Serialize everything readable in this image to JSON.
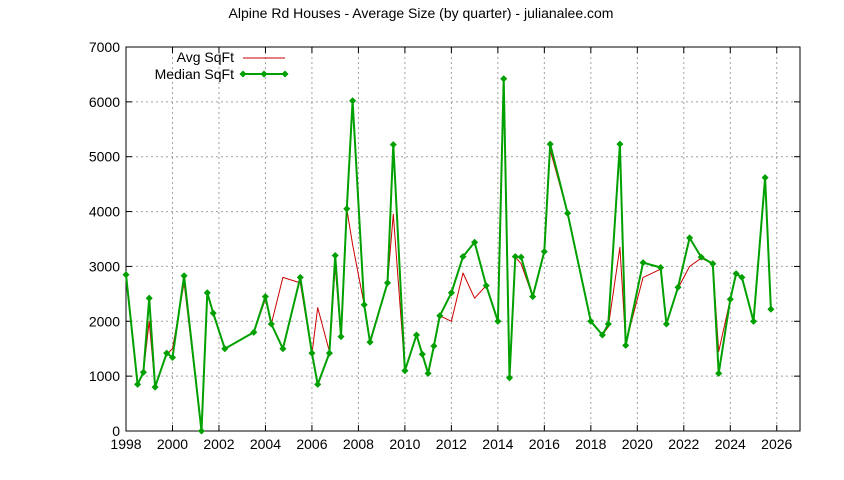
{
  "chart_data": {
    "type": "line",
    "title": "Alpine Rd Houses - Average Size (by quarter) - julianalee.com",
    "xlabel": "",
    "ylabel": "",
    "xlim": [
      1998,
      2027
    ],
    "ylim": [
      0,
      7000
    ],
    "x_ticks": [
      1998,
      2000,
      2002,
      2004,
      2006,
      2008,
      2010,
      2012,
      2014,
      2016,
      2018,
      2020,
      2022,
      2024,
      2026
    ],
    "y_ticks": [
      0,
      1000,
      2000,
      3000,
      4000,
      5000,
      6000,
      7000
    ],
    "grid": true,
    "legend_position": "top-left",
    "x": [
      1998.0,
      1998.5,
      1998.75,
      1999.0,
      1999.25,
      1999.75,
      2000.0,
      2000.5,
      2001.25,
      2001.5,
      2001.75,
      2002.25,
      2003.5,
      2004.0,
      2004.25,
      2004.75,
      2005.5,
      2006.0,
      2006.25,
      2006.75,
      2007.0,
      2007.25,
      2007.5,
      2007.75,
      2008.25,
      2008.5,
      2009.25,
      2009.5,
      2010.0,
      2010.5,
      2010.75,
      2011.0,
      2011.25,
      2011.5,
      2012.0,
      2012.5,
      2013.0,
      2013.5,
      2014.0,
      2014.25,
      2014.5,
      2014.75,
      2015.0,
      2015.5,
      2016.0,
      2016.25,
      2017.0,
      2018.0,
      2018.5,
      2018.75,
      2019.25,
      2019.5,
      2020.25,
      2021.0,
      2021.25,
      2021.75,
      2022.25,
      2022.75,
      2023.25,
      2023.5,
      2024.0,
      2024.25,
      2024.5,
      2025.0,
      2025.5,
      2025.75
    ],
    "series": [
      {
        "name": "Avg SqFt",
        "color": "#cc0000",
        "style": "line",
        "values": [
          2850,
          850,
          1070,
          2000,
          800,
          1400,
          1500,
          2700,
          0,
          2500,
          2150,
          1500,
          1800,
          2400,
          1950,
          2800,
          2700,
          1400,
          2250,
          1450,
          3000,
          1700,
          4050,
          3400,
          2300,
          1650,
          2700,
          3950,
          1100,
          1750,
          1400,
          1050,
          1550,
          2100,
          2000,
          2880,
          2420,
          2650,
          2000,
          6400,
          970,
          3170,
          3050,
          2450,
          3300,
          5120,
          3970,
          2000,
          1750,
          1900,
          3350,
          1600,
          2800,
          2950,
          1950,
          2600,
          3000,
          3150,
          3050,
          1450,
          2400,
          2850,
          2800,
          2000,
          4620,
          2200
        ]
      },
      {
        "name": "Median SqFt",
        "color": "#00a000",
        "style": "linespoints",
        "values": [
          2850,
          850,
          1070,
          2420,
          800,
          1420,
          1340,
          2830,
          0,
          2520,
          2150,
          1500,
          1800,
          2450,
          1950,
          1500,
          2800,
          1420,
          850,
          1420,
          3200,
          1720,
          4050,
          6020,
          2300,
          1620,
          2700,
          5220,
          1100,
          1750,
          1400,
          1050,
          1550,
          2100,
          2520,
          3180,
          3440,
          2650,
          2000,
          6420,
          970,
          3180,
          3170,
          2450,
          3270,
          5230,
          3970,
          2000,
          1750,
          1950,
          5230,
          1560,
          3070,
          2980,
          1950,
          2620,
          3520,
          3170,
          3050,
          1050,
          2400,
          2870,
          2800,
          2000,
          4620,
          2220
        ]
      }
    ]
  }
}
